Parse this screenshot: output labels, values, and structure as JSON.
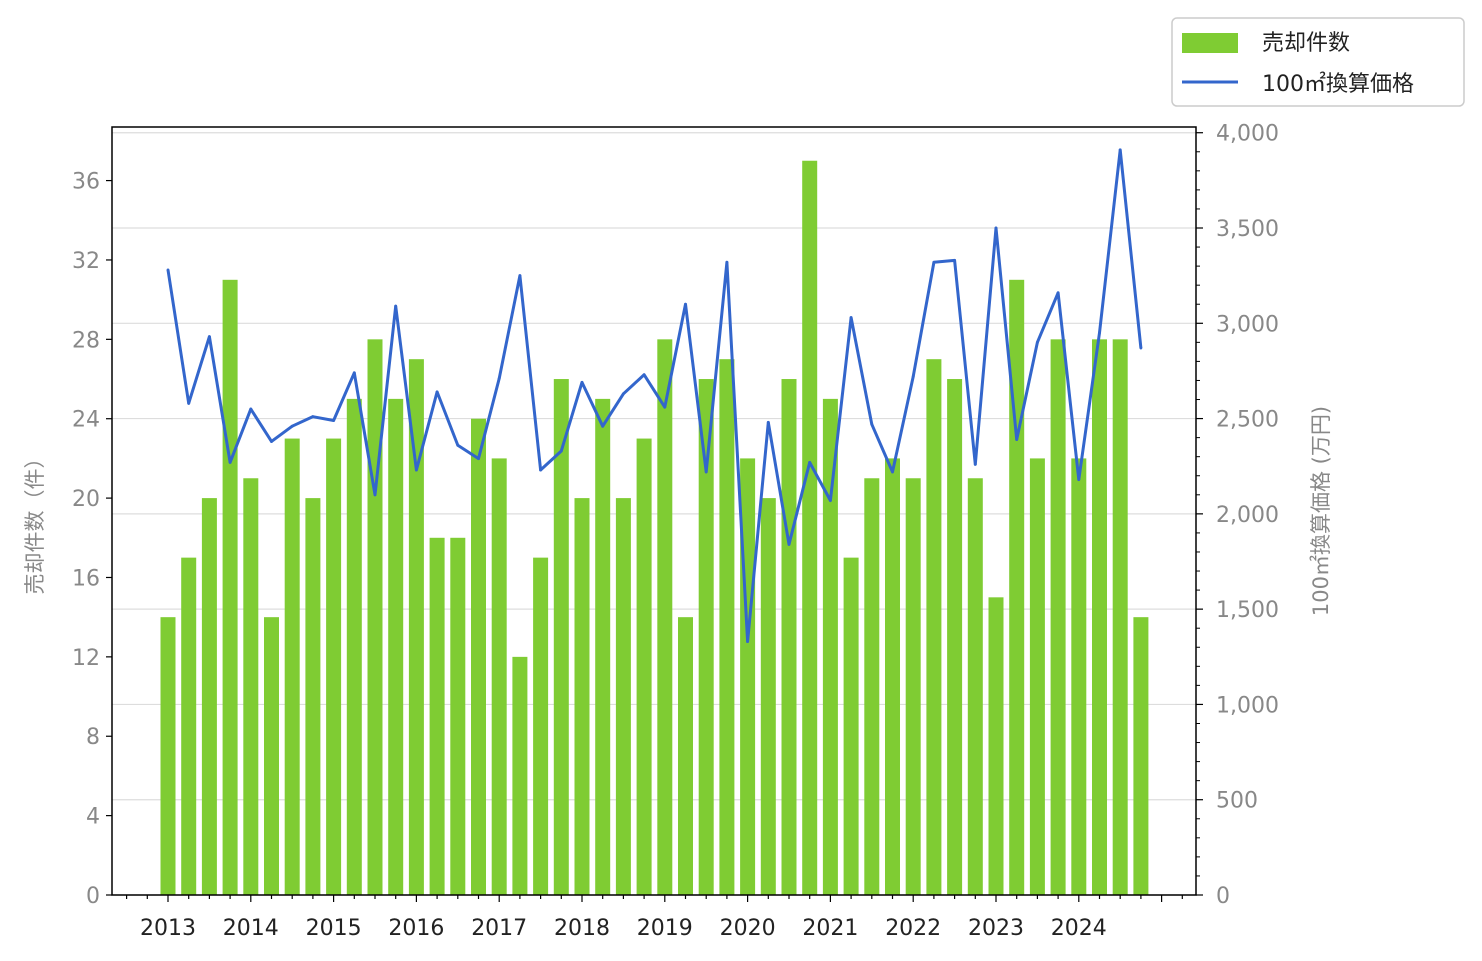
{
  "chart_data": {
    "type": "bar",
    "x_tick_labels": [
      "2013",
      "2014",
      "2015",
      "2016",
      "2017",
      "2018",
      "2019",
      "2020",
      "2021",
      "2022",
      "2023",
      "2024"
    ],
    "y_left_label": "売却件数（件）",
    "y_right_label": "100㎡換算価格 (万円)",
    "y_left_ticks": [
      "0",
      "4",
      "8",
      "12",
      "16",
      "20",
      "24",
      "28",
      "32",
      "36"
    ],
    "y_right_ticks": [
      "0",
      "500",
      "1,000",
      "1,500",
      "2,000",
      "2,500",
      "3,000",
      "3,500",
      "4,000"
    ],
    "ylim_left": [
      0,
      38.7
    ],
    "ylim_right": [
      0,
      4030
    ],
    "legend_position": "top-right",
    "grid": true,
    "colors": {
      "bar": "#7fcc33",
      "line": "#3366cc"
    },
    "series": [
      {
        "name": "売却件数",
        "type": "bar",
        "axis": "left",
        "values": [
          14,
          17,
          20,
          31,
          21,
          14,
          23,
          20,
          23,
          25,
          28,
          25,
          27,
          18,
          18,
          24,
          22,
          12,
          17,
          26,
          20,
          25,
          20,
          23,
          28,
          14,
          26,
          27,
          22,
          20,
          26,
          37,
          25,
          17,
          21,
          22,
          21,
          27,
          26,
          21,
          15,
          31,
          22,
          28,
          22,
          28,
          28,
          14
        ]
      },
      {
        "name": "100㎡換算価格",
        "type": "line",
        "axis": "right",
        "values": [
          3280,
          2580,
          2930,
          2270,
          2550,
          2380,
          2460,
          2510,
          2490,
          2740,
          2100,
          3090,
          2230,
          2640,
          2360,
          2290,
          2710,
          3250,
          2230,
          2330,
          2690,
          2460,
          2630,
          2730,
          2560,
          3100,
          2220,
          3320,
          1330,
          2480,
          1840,
          2270,
          2070,
          3030,
          2470,
          2220,
          2720,
          3320,
          3330,
          2260,
          3500,
          2390,
          2900,
          3160,
          2180,
          2950,
          3910,
          2870
        ]
      }
    ]
  }
}
